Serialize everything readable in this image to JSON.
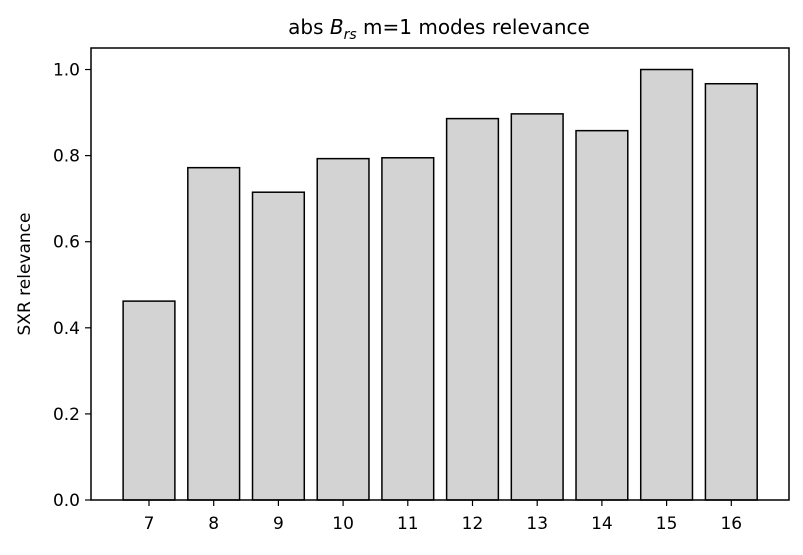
{
  "chart_data": {
    "type": "bar",
    "title": {
      "prefix": "abs ",
      "var": "B",
      "subscript": "rs",
      "suffix": " m=1 modes relevance"
    },
    "xlabel": "",
    "ylabel": "SXR relevance",
    "categories": [
      "7",
      "8",
      "9",
      "10",
      "11",
      "12",
      "13",
      "14",
      "15",
      "16"
    ],
    "values": [
      0.462,
      0.772,
      0.715,
      0.793,
      0.795,
      0.886,
      0.897,
      0.858,
      1.0,
      0.967
    ],
    "ylim": [
      0,
      1.05
    ],
    "yticks": [
      0.0,
      0.2,
      0.4,
      0.6,
      0.8,
      1.0
    ],
    "ytick_labels": [
      "0.0",
      "0.2",
      "0.4",
      "0.6",
      "0.8",
      "1.0"
    ],
    "grid": false,
    "colors": {
      "bar_fill": "#d3d3d3",
      "bar_edge": "#000000",
      "axes": "#000000",
      "background": "#ffffff"
    }
  }
}
